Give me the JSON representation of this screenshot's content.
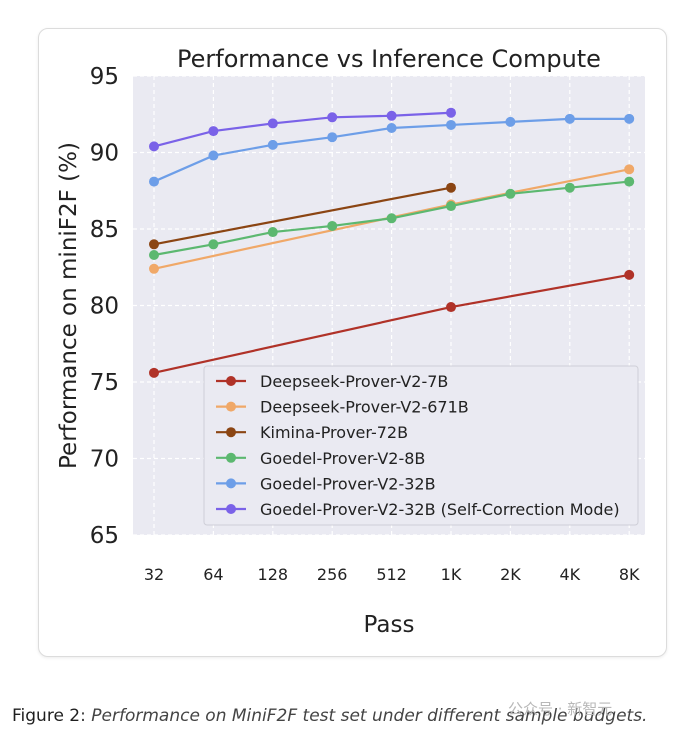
{
  "figure": {
    "caption_label": "Figure 2",
    "caption_sep": ": ",
    "caption_text": "Performance on MiniF2F test set under different sample budgets."
  },
  "watermark": "公众号 · 新智元",
  "chart_data": {
    "type": "line",
    "title": "Performance vs Inference Compute",
    "xlabel": "Pass",
    "ylabel": "Performance on miniF2F (%)",
    "categories": [
      "32",
      "64",
      "128",
      "256",
      "512",
      "1K",
      "2K",
      "4K",
      "8K"
    ],
    "ylim": [
      65,
      95
    ],
    "yticks": [
      65,
      70,
      75,
      80,
      85,
      90,
      95
    ],
    "grid": true,
    "legend_position": "bottom-right",
    "series": [
      {
        "name": "Deepseek-Prover-V2-7B",
        "color": "#b03228",
        "x": [
          "32",
          "1K",
          "8K"
        ],
        "values": [
          75.6,
          79.9,
          82.0
        ]
      },
      {
        "name": "Deepseek-Prover-V2-671B",
        "color": "#f0a868",
        "x": [
          "32",
          "1K",
          "8K"
        ],
        "values": [
          82.4,
          86.6,
          88.9
        ]
      },
      {
        "name": "Kimina-Prover-72B",
        "color": "#8b4513",
        "x": [
          "32",
          "1K"
        ],
        "values": [
          84.0,
          87.7
        ]
      },
      {
        "name": "Goedel-Prover-V2-8B",
        "color": "#5cb870",
        "x": [
          "32",
          "64",
          "128",
          "256",
          "512",
          "1K",
          "2K",
          "4K",
          "8K"
        ],
        "values": [
          83.3,
          84.0,
          84.8,
          85.2,
          85.7,
          86.5,
          87.3,
          87.7,
          88.1
        ]
      },
      {
        "name": "Goedel-Prover-V2-32B",
        "color": "#6d9ee8",
        "x": [
          "32",
          "64",
          "128",
          "256",
          "512",
          "1K",
          "2K",
          "4K",
          "8K"
        ],
        "values": [
          88.1,
          89.8,
          90.5,
          91.0,
          91.6,
          91.8,
          92.0,
          92.2,
          92.2
        ]
      },
      {
        "name": "Goedel-Prover-V2-32B (Self-Correction Mode)",
        "color": "#7a62e8",
        "x": [
          "32",
          "64",
          "128",
          "256",
          "512",
          "1K"
        ],
        "values": [
          90.4,
          91.4,
          91.9,
          92.3,
          92.4,
          92.6
        ]
      }
    ]
  }
}
